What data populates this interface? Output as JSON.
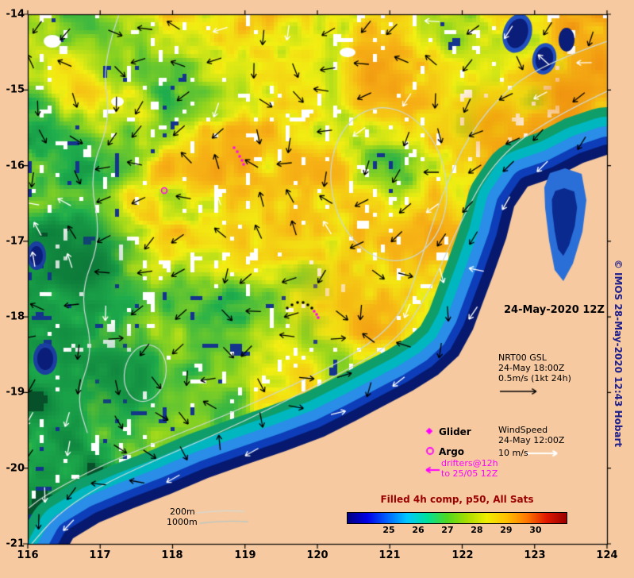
{
  "palette": {
    "background": "#f6c9a0",
    "land": "#f6c9a0",
    "magenta": "#ff00ff",
    "contour_gray": "#cdd9d6",
    "title_red": "#9a0000",
    "copyright_blue": "#20208c",
    "ocean_ramp": [
      "#0a7a3a",
      "#1fae4d",
      "#8fd41e",
      "#f2ee12",
      "#f7b515",
      "#ee8a10"
    ],
    "coast_bands": [
      "#0f9e6a",
      "#00b7c0",
      "#2a8de8",
      "#0d3db8",
      "#06196e"
    ],
    "colorbar_gradient": [
      "#000080",
      "#0000e8",
      "#0064ff",
      "#00c8ff",
      "#00e09a",
      "#50d820",
      "#a8dc00",
      "#f0ee00",
      "#ffc000",
      "#ff7800",
      "#e01800",
      "#980000"
    ]
  },
  "axes": {
    "x_ticks": [
      "116",
      "117",
      "118",
      "119",
      "120",
      "121",
      "122",
      "123",
      "124"
    ],
    "y_ticks": [
      "-14",
      "-15",
      "-16",
      "-17",
      "-18",
      "-19",
      "-20",
      "-21"
    ]
  },
  "annotations": {
    "timestamp": "24-May-2020 12Z",
    "gsl_line1": "NRT00 GSL",
    "gsl_line2": "24-May 18:00Z",
    "gsl_line3": "0.5m/s (1kt 24h)",
    "glider": "Glider",
    "argo": "Argo",
    "drifters_line1": "drifters@12h",
    "drifters_line2": "to 25/05 12Z",
    "wind_line1": "WindSpeed",
    "wind_line2": "24-May 12:00Z",
    "wind_line3": "10 m/s",
    "depth_200": "200m",
    "depth_1000": "1000m",
    "colorbar_title": "Filled 4h comp, p50, All Sats",
    "colorbar_ticks": [
      "25",
      "26",
      "27",
      "28",
      "29",
      "30"
    ],
    "copyright": "© IMOS 28-May-2020 12:43 Hobart"
  },
  "chart_data": {
    "type": "heatmap",
    "title": "Filled 4h comp, p50, All Sats",
    "timestamp": "24-May-2020 12Z",
    "x_ticks": [
      116,
      117,
      118,
      119,
      120,
      121,
      122,
      123,
      124
    ],
    "y_ticks": [
      -14,
      -15,
      -16,
      -17,
      -18,
      -19,
      -20,
      -21
    ],
    "x_range": [
      116,
      124
    ],
    "y_range": [
      -21,
      -14
    ],
    "colorbar_ticks": [
      25,
      26,
      27,
      28,
      29,
      30
    ],
    "legend_entries": [
      "NRT00 GSL 24-May 18:00Z 0.5m/s (1kt 24h)",
      "Glider",
      "Argo",
      "drifters@12h to 25/05 12Z",
      "WindSpeed 24-May 12:00Z 10 m/s",
      "200m",
      "1000m"
    ],
    "legend_position": "lower right"
  }
}
